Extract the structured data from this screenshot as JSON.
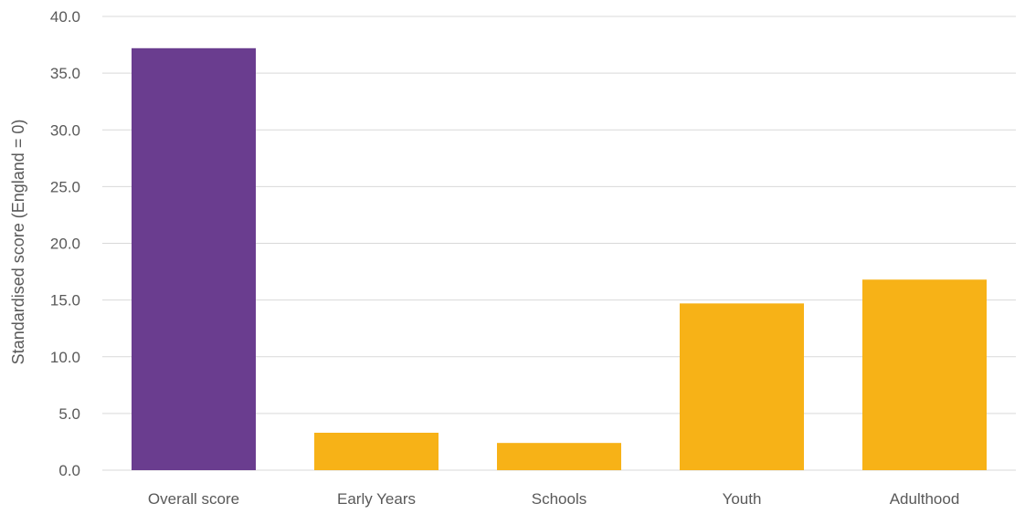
{
  "chart_data": {
    "type": "bar",
    "title": "",
    "xlabel": "",
    "ylabel": "Standardised score (England = 0)",
    "ylim": [
      0,
      40
    ],
    "yticks": [
      "0.0",
      "5.0",
      "10.0",
      "15.0",
      "20.0",
      "25.0",
      "30.0",
      "35.0",
      "40.0"
    ],
    "grid": true,
    "legend": "none",
    "categories": [
      "Overall score",
      "Early Years",
      "Schools",
      "Youth",
      "Adulthood"
    ],
    "values": [
      37.2,
      3.3,
      2.4,
      14.7,
      16.8
    ],
    "colors": [
      "#6a3d8f",
      "#f7b217",
      "#f7b217",
      "#f7b217",
      "#f7b217"
    ],
    "gridline_color": "#d9d9d9"
  }
}
